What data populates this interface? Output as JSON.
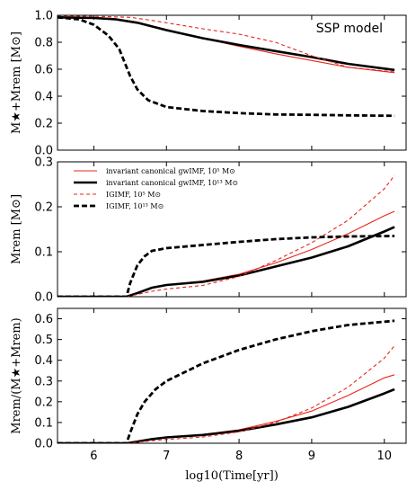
{
  "chart_data": [
    {
      "type": "line",
      "panel": "top",
      "ylabel": "M★+Mrem [M⊙]",
      "ylim": [
        0.0,
        1.0
      ],
      "yticks": [
        "0.0",
        "0.2",
        "0.4",
        "0.6",
        "0.8",
        "1.0"
      ],
      "ytick_values": [
        0.0,
        0.2,
        0.4,
        0.6,
        0.8,
        1.0
      ],
      "xlim": [
        5.5,
        10.3
      ],
      "show_xticklabels": false,
      "annotation": "SSP model",
      "series": [
        {
          "style": "red-solid",
          "x": [
            5.5,
            6.0,
            6.3,
            6.6,
            7.0,
            7.5,
            8.0,
            8.5,
            9.0,
            9.5,
            10.14
          ],
          "y": [
            0.99,
            0.985,
            0.975,
            0.95,
            0.895,
            0.83,
            0.77,
            0.715,
            0.665,
            0.615,
            0.575
          ]
        },
        {
          "style": "black-solid",
          "x": [
            5.5,
            6.0,
            6.3,
            6.6,
            7.0,
            7.5,
            8.0,
            8.5,
            9.0,
            9.5,
            10.14
          ],
          "y": [
            0.985,
            0.98,
            0.97,
            0.945,
            0.89,
            0.83,
            0.78,
            0.735,
            0.69,
            0.64,
            0.595
          ]
        },
        {
          "style": "red-dashed",
          "x": [
            5.5,
            6.0,
            6.5,
            6.7,
            7.0,
            7.5,
            8.0,
            8.5,
            9.0,
            9.5,
            10.14
          ],
          "y": [
            0.995,
            0.993,
            0.985,
            0.97,
            0.945,
            0.9,
            0.86,
            0.8,
            0.7,
            0.615,
            0.58
          ]
        },
        {
          "style": "black-dashed",
          "x": [
            5.5,
            5.8,
            6.0,
            6.2,
            6.35,
            6.5,
            6.6,
            6.75,
            7.0,
            7.5,
            8.0,
            8.5,
            9.0,
            9.5,
            10.14
          ],
          "y": [
            0.985,
            0.97,
            0.93,
            0.85,
            0.75,
            0.55,
            0.45,
            0.37,
            0.32,
            0.29,
            0.275,
            0.265,
            0.262,
            0.258,
            0.255
          ]
        }
      ]
    },
    {
      "type": "line",
      "panel": "middle",
      "ylabel": "Mrem [M⊙]",
      "ylim": [
        0.0,
        0.3
      ],
      "yticks": [
        "0.0",
        "0.1",
        "0.2",
        "0.3"
      ],
      "ytick_values": [
        0.0,
        0.1,
        0.2,
        0.3
      ],
      "xlim": [
        5.5,
        10.3
      ],
      "show_xticklabels": false,
      "legend_position": "upper-left",
      "series": [
        {
          "name": "invariant canonical gwIMF,  10⁵ M⊙",
          "style": "red-solid",
          "x": [
            5.5,
            6.45,
            6.6,
            6.8,
            7.0,
            7.5,
            8.0,
            8.5,
            9.0,
            9.5,
            10.0,
            10.14
          ],
          "y": [
            0.0,
            0.0,
            0.008,
            0.02,
            0.027,
            0.035,
            0.05,
            0.075,
            0.105,
            0.14,
            0.18,
            0.19
          ]
        },
        {
          "name": "invariant canonical gwIMF,  10¹³ M⊙",
          "style": "black-solid",
          "x": [
            5.5,
            6.45,
            6.6,
            6.8,
            7.0,
            7.5,
            8.0,
            8.5,
            9.0,
            9.5,
            10.0,
            10.14
          ],
          "y": [
            0.0,
            0.0,
            0.008,
            0.02,
            0.026,
            0.033,
            0.047,
            0.067,
            0.087,
            0.112,
            0.145,
            0.155
          ]
        },
        {
          "name": "IGIMF,  10⁵ M⊙",
          "style": "red-dashed",
          "x": [
            5.5,
            6.45,
            6.6,
            6.8,
            7.0,
            7.5,
            8.0,
            8.5,
            9.0,
            9.5,
            10.0,
            10.14
          ],
          "y": [
            0.0,
            0.0,
            0.005,
            0.012,
            0.017,
            0.025,
            0.045,
            0.08,
            0.12,
            0.17,
            0.24,
            0.27
          ]
        },
        {
          "name": "IGIMF,  10¹³ M⊙",
          "style": "black-dashed",
          "x": [
            5.5,
            6.45,
            6.5,
            6.6,
            6.7,
            6.8,
            7.0,
            7.5,
            8.0,
            8.5,
            9.0,
            9.5,
            10.14
          ],
          "y": [
            0.0,
            0.0,
            0.03,
            0.07,
            0.09,
            0.102,
            0.108,
            0.115,
            0.122,
            0.128,
            0.132,
            0.134,
            0.135
          ]
        }
      ]
    },
    {
      "type": "line",
      "panel": "bottom",
      "ylabel": "Mrem/(M★+Mrem)",
      "xlabel": "log10(Time[yr])",
      "ylim": [
        0.0,
        0.65
      ],
      "yticks": [
        "0.0",
        "0.1",
        "0.2",
        "0.3",
        "0.4",
        "0.5",
        "0.6"
      ],
      "ytick_values": [
        0.0,
        0.1,
        0.2,
        0.3,
        0.4,
        0.5,
        0.6
      ],
      "xlim": [
        5.5,
        10.3
      ],
      "xticks": [
        "6",
        "7",
        "8",
        "9",
        "10"
      ],
      "xtick_values": [
        6,
        7,
        8,
        9,
        10
      ],
      "show_xticklabels": true,
      "series": [
        {
          "style": "red-solid",
          "x": [
            5.5,
            6.45,
            6.6,
            6.8,
            7.0,
            7.5,
            8.0,
            8.5,
            9.0,
            9.5,
            10.0,
            10.14
          ],
          "y": [
            0.0,
            0.0,
            0.008,
            0.02,
            0.03,
            0.042,
            0.065,
            0.105,
            0.155,
            0.23,
            0.315,
            0.33
          ]
        },
        {
          "style": "black-solid",
          "x": [
            5.5,
            6.45,
            6.6,
            6.8,
            7.0,
            7.5,
            8.0,
            8.5,
            9.0,
            9.5,
            10.0,
            10.14
          ],
          "y": [
            0.0,
            0.0,
            0.008,
            0.02,
            0.028,
            0.04,
            0.06,
            0.09,
            0.125,
            0.175,
            0.24,
            0.26
          ]
        },
        {
          "style": "red-dashed",
          "x": [
            5.5,
            6.45,
            6.6,
            6.8,
            7.0,
            7.5,
            8.0,
            8.5,
            9.0,
            9.5,
            10.0,
            10.14
          ],
          "y": [
            0.0,
            0.0,
            0.005,
            0.012,
            0.018,
            0.03,
            0.055,
            0.1,
            0.17,
            0.27,
            0.41,
            0.47
          ]
        },
        {
          "style": "black-dashed",
          "x": [
            5.5,
            6.45,
            6.5,
            6.6,
            6.7,
            6.85,
            7.0,
            7.5,
            8.0,
            8.5,
            9.0,
            9.5,
            10.14
          ],
          "y": [
            0.0,
            0.0,
            0.05,
            0.14,
            0.2,
            0.26,
            0.3,
            0.385,
            0.45,
            0.5,
            0.54,
            0.57,
            0.59
          ]
        }
      ]
    }
  ],
  "colors": {
    "red": "#e8241a",
    "black": "#000000"
  },
  "line_styles": {
    "red-solid": {
      "color": "#e8241a",
      "width": 1.1,
      "dash": ""
    },
    "black-solid": {
      "color": "#000000",
      "width": 2.6,
      "dash": ""
    },
    "red-dashed": {
      "color": "#e8241a",
      "width": 1.1,
      "dash": "4,3"
    },
    "black-dashed": {
      "color": "#000000",
      "width": 2.8,
      "dash": "6,3"
    }
  }
}
